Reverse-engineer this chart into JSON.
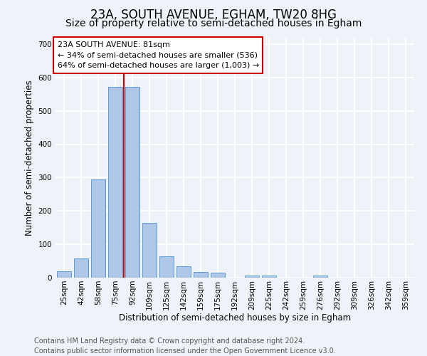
{
  "title1": "23A, SOUTH AVENUE, EGHAM, TW20 8HG",
  "title2": "Size of property relative to semi-detached houses in Egham",
  "xlabel": "Distribution of semi-detached houses by size in Egham",
  "ylabel": "Number of semi-detached properties",
  "footer1": "Contains HM Land Registry data © Crown copyright and database right 2024.",
  "footer2": "Contains public sector information licensed under the Open Government Licence v3.0.",
  "annotation_line1": "23A SOUTH AVENUE: 81sqm",
  "annotation_line2": "← 34% of semi-detached houses are smaller (536)",
  "annotation_line3": "64% of semi-detached houses are larger (1,003) →",
  "categories": [
    "25sqm",
    "42sqm",
    "58sqm",
    "75sqm",
    "92sqm",
    "109sqm",
    "125sqm",
    "142sqm",
    "159sqm",
    "175sqm",
    "192sqm",
    "209sqm",
    "225sqm",
    "242sqm",
    "259sqm",
    "276sqm",
    "292sqm",
    "309sqm",
    "326sqm",
    "342sqm",
    "359sqm"
  ],
  "values": [
    20,
    57,
    295,
    572,
    572,
    165,
    63,
    35,
    17,
    15,
    0,
    7,
    7,
    0,
    0,
    7,
    0,
    0,
    0,
    0,
    0
  ],
  "bar_color": "#aec6e8",
  "bar_edge_color": "#5b9bd5",
  "red_line_x": 3.5,
  "ylim": [
    0,
    720
  ],
  "yticks": [
    0,
    100,
    200,
    300,
    400,
    500,
    600,
    700
  ],
  "background_color": "#eef2f9",
  "grid_color": "#ffffff",
  "annotation_box_color": "#ffffff",
  "annotation_box_edge": "#cc0000",
  "red_line_color": "#cc0000",
  "title1_fontsize": 12,
  "title2_fontsize": 10,
  "axis_label_fontsize": 8.5,
  "tick_fontsize": 7.5,
  "annotation_fontsize": 8,
  "footer_fontsize": 7
}
